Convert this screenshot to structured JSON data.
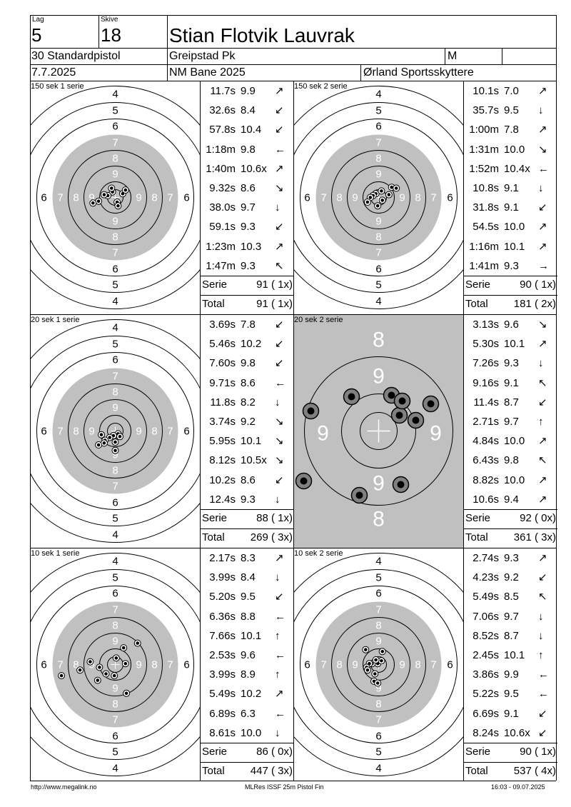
{
  "header": {
    "lag_label": "Lag",
    "lag_value": "5",
    "skive_label": "Skive",
    "skive_value": "18",
    "shooter_name": "Stian Flotvik Lauvrak",
    "discipline": "30 Standardpistol",
    "club": "Greipstad Pk",
    "gender": "M",
    "date": "7.7.2025",
    "event": "NM Bane 2025",
    "team": "Ørland Sportsskyttere"
  },
  "colors": {
    "ring_fill": "#c0c0c0",
    "line": "#000000",
    "hole": "#000000",
    "hole_ring": "#808080"
  },
  "panels": [
    {
      "title": "150 sek 1 serie",
      "zoom": false,
      "shots": [
        {
          "time": "11.7s",
          "score": "9.9",
          "dir": "↗"
        },
        {
          "time": "32.6s",
          "score": "8.4",
          "dir": "↙"
        },
        {
          "time": "57.8s",
          "score": "10.4",
          "dir": "↙"
        },
        {
          "time": "1:18m",
          "score": "9.8",
          "dir": "←"
        },
        {
          "time": "1:40m",
          "score": "10.6x",
          "dir": "↗"
        },
        {
          "time": "9.32s",
          "score": "8.6",
          "dir": "↘"
        },
        {
          "time": "38.0s",
          "score": "9.7",
          "dir": "↓"
        },
        {
          "time": "59.1s",
          "score": "9.3",
          "dir": "↙"
        },
        {
          "time": "1:23m",
          "score": "10.3",
          "dir": "↗"
        },
        {
          "time": "1:47m",
          "score": "9.3",
          "dir": "↖"
        }
      ],
      "serie_label": "Serie",
      "serie_value": "91 ( 1x)",
      "total_label": "Total",
      "total_value": "91 ( 1x)",
      "holes": [
        [
          8,
          -4
        ],
        [
          -3,
          -6
        ],
        [
          -8,
          -2
        ],
        [
          -4,
          -10
        ],
        [
          -12,
          -3
        ],
        [
          2,
          5
        ],
        [
          -18,
          4
        ],
        [
          11,
          -8
        ],
        [
          3,
          9
        ],
        [
          -24,
          6
        ]
      ]
    },
    {
      "title": "150 sek 2 serie",
      "zoom": false,
      "shots": [
        {
          "time": "10.1s",
          "score": "7.0",
          "dir": "↗"
        },
        {
          "time": "35.7s",
          "score": "9.5",
          "dir": "↓"
        },
        {
          "time": "1:00m",
          "score": "7.8",
          "dir": "↗"
        },
        {
          "time": "1:31m",
          "score": "10.0",
          "dir": "↘"
        },
        {
          "time": "1:52m",
          "score": "10.4x",
          "dir": "←"
        },
        {
          "time": "10.8s",
          "score": "9.1",
          "dir": "↓"
        },
        {
          "time": "31.8s",
          "score": "9.1",
          "dir": "↙"
        },
        {
          "time": "54.5s",
          "score": "10.0",
          "dir": "↗"
        },
        {
          "time": "1:16m",
          "score": "10.1",
          "dir": "↗"
        },
        {
          "time": "1:41m",
          "score": "9.3",
          "dir": "→"
        }
      ],
      "serie_label": "Serie",
      "serie_value": "90 ( 1x)",
      "total_label": "Total",
      "total_value": "181 ( 2x)",
      "holes": [
        [
          -3,
          -4
        ],
        [
          3,
          -7
        ],
        [
          -6,
          -2
        ],
        [
          4,
          3
        ],
        [
          -9,
          0
        ],
        [
          -1,
          9
        ],
        [
          11,
          -3
        ],
        [
          -12,
          5
        ],
        [
          14,
          -11
        ],
        [
          19,
          -10
        ]
      ]
    },
    {
      "title": "20 sek 1 serie",
      "zoom": false,
      "shots": [
        {
          "time": "3.69s",
          "score": "7.8",
          "dir": "↙"
        },
        {
          "time": "5.46s",
          "score": "10.2",
          "dir": "↙"
        },
        {
          "time": "7.60s",
          "score": "9.8",
          "dir": "↙"
        },
        {
          "time": "9.71s",
          "score": "8.6",
          "dir": "←"
        },
        {
          "time": "11.8s",
          "score": "8.2",
          "dir": "↓"
        },
        {
          "time": "3.74s",
          "score": "9.2",
          "dir": "↘"
        },
        {
          "time": "5.95s",
          "score": "10.1",
          "dir": "↘"
        },
        {
          "time": "8.12s",
          "score": "10.5x",
          "dir": "↘"
        },
        {
          "time": "10.2s",
          "score": "8.6",
          "dir": "↙"
        },
        {
          "time": "12.4s",
          "score": "9.3",
          "dir": "↓"
        }
      ],
      "serie_label": "Serie",
      "serie_value": "88 ( 1x)",
      "total_label": "Total",
      "total_value": "269 ( 3x)",
      "holes": [
        [
          3,
          3
        ],
        [
          -2,
          5
        ],
        [
          5,
          6
        ],
        [
          -6,
          7
        ],
        [
          -11,
          10
        ],
        [
          -15,
          4
        ],
        [
          -12,
          13
        ],
        [
          -18,
          15
        ],
        [
          0,
          12
        ],
        [
          0,
          21
        ]
      ]
    },
    {
      "title": "20 sek 2 serie",
      "zoom": true,
      "shots": [
        {
          "time": "3.13s",
          "score": "9.6",
          "dir": "↘"
        },
        {
          "time": "5.30s",
          "score": "10.1",
          "dir": "↗"
        },
        {
          "time": "7.26s",
          "score": "9.3",
          "dir": "↓"
        },
        {
          "time": "9.16s",
          "score": "9.1",
          "dir": "↖"
        },
        {
          "time": "11.4s",
          "score": "8.7",
          "dir": "↙"
        },
        {
          "time": "2.71s",
          "score": "9.7",
          "dir": "↑"
        },
        {
          "time": "4.84s",
          "score": "10.0",
          "dir": "↗"
        },
        {
          "time": "6.43s",
          "score": "9.8",
          "dir": "↖"
        },
        {
          "time": "8.82s",
          "score": "10.0",
          "dir": "↗"
        },
        {
          "time": "10.6s",
          "score": "9.4",
          "dir": "↗"
        }
      ],
      "serie_label": "Serie",
      "serie_value": "92 ( 0x)",
      "total_label": "Total",
      "total_value": "361 ( 3x)",
      "holes": [
        [
          18,
          -50
        ],
        [
          29,
          -22
        ],
        [
          33,
          -42
        ],
        [
          52,
          -15
        ],
        [
          73,
          -38
        ],
        [
          -38,
          -48
        ],
        [
          -95,
          -28
        ],
        [
          -105,
          70
        ],
        [
          -27,
          90
        ],
        [
          31,
          75
        ]
      ]
    },
    {
      "title": "10 sek 1 serie",
      "zoom": false,
      "shots": [
        {
          "time": "2.17s",
          "score": "8.3",
          "dir": "↗"
        },
        {
          "time": "3.99s",
          "score": "8.4",
          "dir": "↓"
        },
        {
          "time": "5.20s",
          "score": "9.5",
          "dir": "↙"
        },
        {
          "time": "6.36s",
          "score": "8.8",
          "dir": "←"
        },
        {
          "time": "7.66s",
          "score": "10.1",
          "dir": "↑"
        },
        {
          "time": "2.53s",
          "score": "9.6",
          "dir": "←"
        },
        {
          "time": "3.99s",
          "score": "8.9",
          "dir": "↑"
        },
        {
          "time": "5.49s",
          "score": "10.2",
          "dir": "↗"
        },
        {
          "time": "6.89s",
          "score": "6.3",
          "dir": "←"
        },
        {
          "time": "8.61s",
          "score": "10.0",
          "dir": "↓"
        }
      ],
      "serie_label": "Serie",
      "serie_value": "86 ( 0x)",
      "total_label": "Total",
      "total_value": "447 ( 3x)",
      "holes": [
        [
          9,
          -18
        ],
        [
          24,
          -23
        ],
        [
          -27,
          -3
        ],
        [
          -17,
          3
        ],
        [
          -10,
          10
        ],
        [
          -1,
          12
        ],
        [
          1,
          -7
        ],
        [
          -19,
          17
        ],
        [
          11,
          -1
        ],
        [
          -38,
          6
        ],
        [
          -58,
          12
        ],
        [
          12,
          31
        ]
      ]
    },
    {
      "title": "10 sek 2 serie",
      "zoom": false,
      "shots": [
        {
          "time": "2.74s",
          "score": "9.3",
          "dir": "↗"
        },
        {
          "time": "4.23s",
          "score": "9.2",
          "dir": "↙"
        },
        {
          "time": "5.49s",
          "score": "8.5",
          "dir": "↖"
        },
        {
          "time": "7.06s",
          "score": "9.7",
          "dir": "↓"
        },
        {
          "time": "8.52s",
          "score": "8.7",
          "dir": "↓"
        },
        {
          "time": "2.45s",
          "score": "10.1",
          "dir": "↑"
        },
        {
          "time": "3.86s",
          "score": "9.9",
          "dir": "←"
        },
        {
          "time": "5.22s",
          "score": "9.5",
          "dir": "←"
        },
        {
          "time": "6.69s",
          "score": "9.1",
          "dir": "↙"
        },
        {
          "time": "8.24s",
          "score": "10.6x",
          "dir": "↙"
        }
      ],
      "serie_label": "Serie",
      "serie_value": "90 ( 1x)",
      "total_label": "Total",
      "total_value": "537 ( 4x)",
      "holes": [
        [
          -1,
          -1
        ],
        [
          3,
          -4
        ],
        [
          -7,
          -1
        ],
        [
          -10,
          -1
        ],
        [
          -13,
          3
        ],
        [
          -12,
          6
        ],
        [
          -4,
          10
        ],
        [
          -3,
          -5
        ],
        [
          -14,
          -16
        ],
        [
          4,
          -14
        ],
        [
          -5,
          18
        ],
        [
          -1,
          20
        ]
      ]
    }
  ],
  "footer": {
    "url": "http://www.megalink.no",
    "program": "MLRes ISSF 25m Pistol Fin",
    "timestamp": "16:03 - 09.07.2025"
  }
}
